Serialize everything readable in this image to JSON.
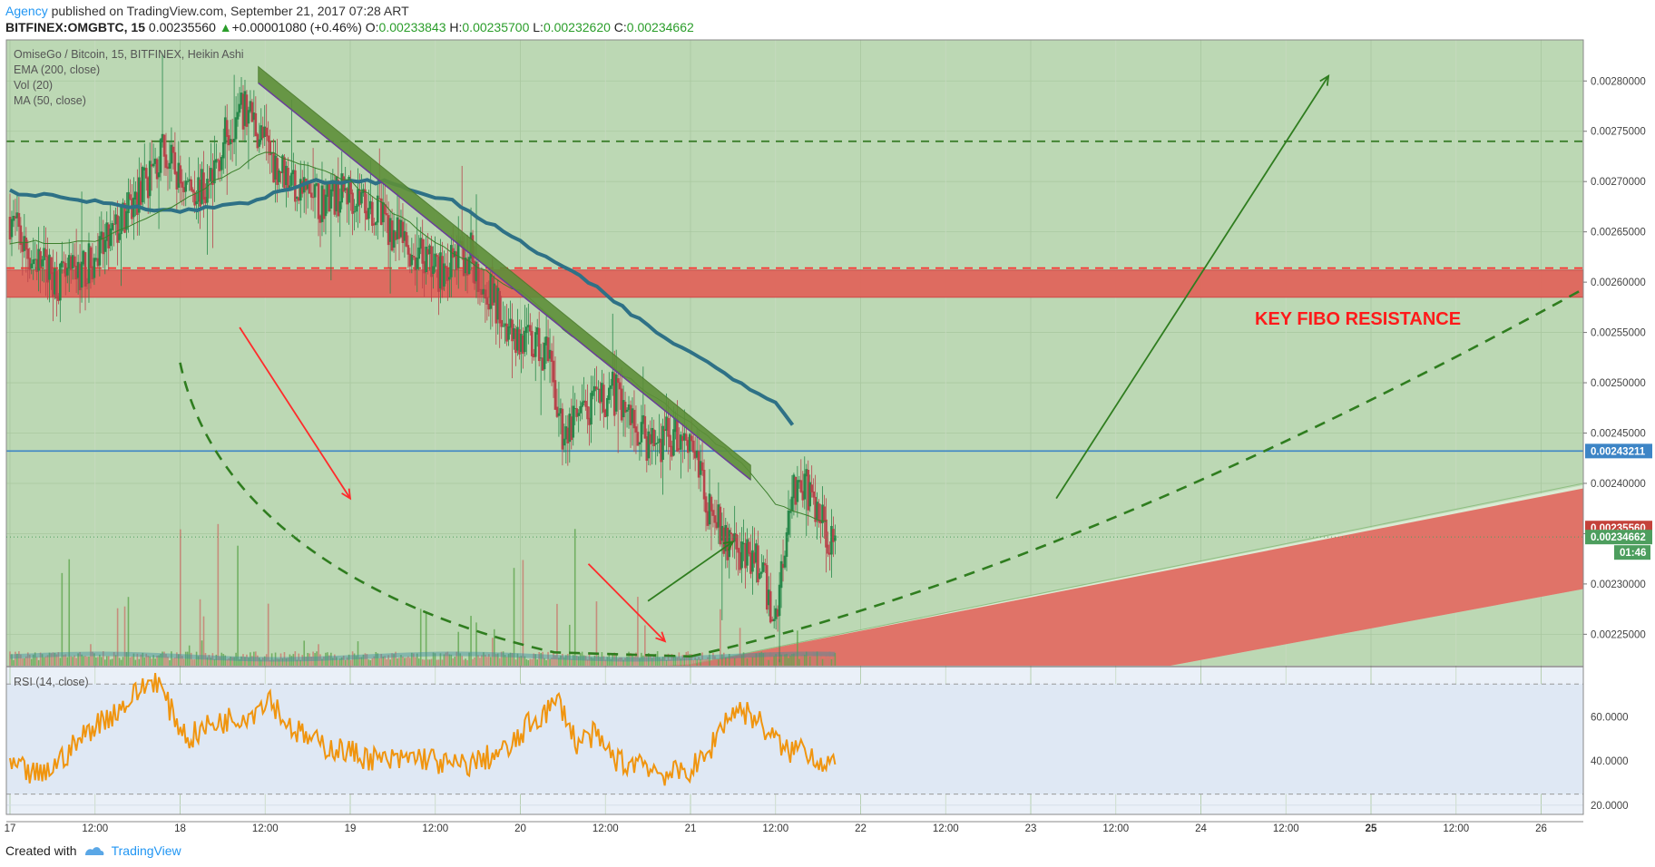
{
  "header": {
    "author": "Agency",
    "published_text": " published on TradingView.com, September 21, 2017 07:28 ART",
    "symbol": "BITFINEX:OMGBTC, 15",
    "price": "0.00235560",
    "change_arrow": "▲",
    "change": "+0.00001080 (+0.46%)",
    "o_label": "O:",
    "o_value": "0.00233843",
    "h_label": "H:",
    "h_value": "0.00235700",
    "l_label": "L:",
    "l_value": "0.00232620",
    "c_label": "C:",
    "c_value": "0.00234662"
  },
  "legend": {
    "title": "OmiseGo / Bitcoin, 15, BITFINEX, Heikin Ashi",
    "ema": "EMA (200, close)",
    "vol": "Vol (20)",
    "ma": "MA (50, close)",
    "rsi": "RSI (14, close)"
  },
  "annotation": "KEY FIBO RESISTANCE",
  "price_labels": {
    "line": "0.00243211",
    "last": "0.00235560",
    "close": "0.00234662",
    "countdown": "01:46"
  },
  "footer": {
    "created_with": "Created with",
    "brand": "TradingView"
  },
  "colors": {
    "chart_bg": "#bcd8b4",
    "panel_bg": "#eaf0f8",
    "resistance_zone": "#e0665c",
    "trendline": "#5e8f3a",
    "ema": "#2e7186",
    "ma": "#3c7f2c",
    "rsi": "#f0950f",
    "arrow_red": "#ff2b2b",
    "arrow_green": "#2f7d1f",
    "hline": "#3d85c6",
    "up_candle": "#27884a",
    "down_candle": "#b8444b"
  },
  "chart_data": [
    {
      "type": "candlestick",
      "title": "OmiseGo / Bitcoin, 15, BITFINEX, Heikin Ashi",
      "x_ticks": [
        "17",
        "12:00",
        "18",
        "12:00",
        "19",
        "12:00",
        "20",
        "12:00",
        "21",
        "12:00",
        "22",
        "12:00",
        "23",
        "12:00",
        "24",
        "12:00",
        "25",
        "12:00",
        "26"
      ],
      "y_ticks": [
        "0.00280000",
        "0.00275000",
        "0.00270000",
        "0.00265000",
        "0.00260000",
        "0.00255000",
        "0.00250000",
        "0.00245000",
        "0.00240000",
        "0.00235000",
        "0.00230000",
        "0.00225000"
      ],
      "ylim": [
        0.00221877,
        0.00284081
      ],
      "price_path": [
        [
          0.0,
          0.002665
        ],
        [
          0.1,
          0.00263
        ],
        [
          0.3,
          0.0026
        ],
        [
          0.5,
          0.00262
        ],
        [
          0.7,
          0.00267
        ],
        [
          0.9,
          0.00273
        ],
        [
          1.0,
          0.0027
        ],
        [
          1.15,
          0.00269
        ],
        [
          1.3,
          0.00276
        ],
        [
          1.4,
          0.00277
        ],
        [
          1.55,
          0.00272
        ],
        [
          1.8,
          0.00268
        ],
        [
          2.0,
          0.00269
        ],
        [
          2.1,
          0.00268
        ],
        [
          2.3,
          0.00264
        ],
        [
          2.5,
          0.00261
        ],
        [
          2.7,
          0.00263
        ],
        [
          2.85,
          0.00258
        ],
        [
          3.0,
          0.00254
        ],
        [
          3.15,
          0.00253
        ],
        [
          3.25,
          0.00245
        ],
        [
          3.4,
          0.00247
        ],
        [
          3.55,
          0.00249
        ],
        [
          3.75,
          0.00244
        ],
        [
          4.0,
          0.00245
        ],
        [
          4.1,
          0.00238
        ],
        [
          4.25,
          0.00233
        ],
        [
          4.4,
          0.00232
        ],
        [
          4.5,
          0.00226
        ],
        [
          4.55,
          0.00234
        ],
        [
          4.6,
          0.0024
        ],
        [
          4.7,
          0.00239
        ],
        [
          4.8,
          0.00235
        ],
        [
          4.85,
          0.00235
        ]
      ],
      "ema200": [
        [
          0.0,
          0.00269
        ],
        [
          0.5,
          0.00268
        ],
        [
          1.0,
          0.00267
        ],
        [
          1.4,
          0.00268
        ],
        [
          1.8,
          0.0027
        ],
        [
          2.2,
          0.0027
        ],
        [
          2.6,
          0.00268
        ],
        [
          3.0,
          0.00264
        ],
        [
          3.4,
          0.0026
        ],
        [
          3.8,
          0.00255
        ],
        [
          4.2,
          0.00251
        ],
        [
          4.5,
          0.00248
        ],
        [
          4.6,
          0.00246
        ]
      ],
      "ma50": [
        [
          0.0,
          0.00264
        ],
        [
          0.5,
          0.00264
        ],
        [
          1.0,
          0.00268
        ],
        [
          1.5,
          0.00273
        ],
        [
          2.0,
          0.0027
        ],
        [
          2.5,
          0.00264
        ],
        [
          3.0,
          0.00259
        ],
        [
          3.5,
          0.00252
        ],
        [
          4.0,
          0.00246
        ],
        [
          4.3,
          0.00242
        ],
        [
          4.5,
          0.00238
        ],
        [
          4.8,
          0.00236
        ]
      ],
      "horizontal_lines": [
        {
          "price": 0.00274,
          "style": "dashed",
          "color": "#3c7f2c"
        },
        {
          "price": 0.002614,
          "style": "dashed",
          "color": "#ff2b2b"
        },
        {
          "price": 0.00243211,
          "style": "solid",
          "color": "#3d85c6"
        }
      ],
      "zones": [
        {
          "name": "KEY FIBO RESISTANCE",
          "from": 0.002585,
          "to": 0.002612
        }
      ],
      "trendlines": [
        {
          "from": [
            1.46,
            0.002807
          ],
          "to": [
            4.3,
            0.002418
          ]
        },
        {
          "from": [
            2.9,
            0.002611
          ],
          "to": [
            5.45,
            0.002275
          ]
        }
      ],
      "annotations": [
        {
          "type": "arrow",
          "color": "red",
          "from": [
            1.35,
            0.002555
          ],
          "to": [
            2.0,
            0.002385
          ]
        },
        {
          "type": "arrow",
          "color": "red",
          "from": [
            3.4,
            0.00232
          ],
          "to": [
            3.85,
            0.002243
          ]
        },
        {
          "type": "arrow",
          "color": "green",
          "from": [
            3.75,
            0.002283
          ],
          "to": [
            4.25,
            0.002342
          ]
        },
        {
          "type": "arrow",
          "color": "green",
          "from": [
            6.15,
            0.002385
          ],
          "to": [
            7.75,
            0.002805
          ]
        }
      ]
    },
    {
      "type": "line",
      "title": "RSI (14, close)",
      "y_ticks": [
        "60.0000",
        "40.0000",
        "20.0000"
      ],
      "ylim": [
        15.8,
        82.5
      ],
      "bands": [
        25,
        75
      ],
      "series": [
        {
          "values": [
            38,
            35,
            33,
            40,
            47,
            55,
            60,
            65,
            72,
            78,
            62,
            50,
            55,
            58,
            60,
            62,
            70,
            58,
            52,
            48,
            46,
            44,
            42,
            40,
            40,
            42,
            41,
            38,
            38,
            40,
            43,
            46,
            56,
            62,
            67,
            48,
            52,
            44,
            38,
            41,
            35,
            34,
            36,
            41,
            57,
            64,
            60,
            52,
            44,
            47,
            40,
            40
          ]
        }
      ]
    }
  ]
}
